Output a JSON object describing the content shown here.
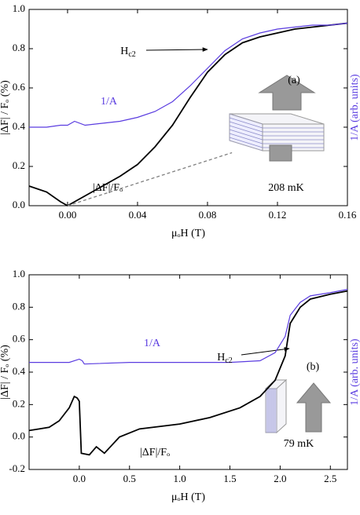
{
  "chart_data": [
    {
      "type": "line",
      "xlabel": "μₒH (T)",
      "ylabel": "|ΔF| / Fₒ (%)",
      "y2label": "1/A (arb. units)",
      "xlim": [
        -0.022,
        0.16
      ],
      "ylim": [
        0,
        1
      ],
      "xticks": [
        {
          "value": 0,
          "label": "0.00"
        },
        0.04,
        0.08,
        0.12,
        0.16
      ],
      "yticks": [
        {
          "value": 0,
          "label": "0.0"
        },
        0.2,
        0.4,
        0.6,
        0.8,
        {
          "value": 1,
          "label": "1.0"
        }
      ],
      "x": [
        -0.022,
        -0.012,
        -0.004,
        0,
        0.004,
        0.01,
        0.02,
        0.03,
        0.04,
        0.05,
        0.06,
        0.07,
        0.08,
        0.09,
        0.1,
        0.11,
        0.12,
        0.13,
        0.14,
        0.15,
        0.16
      ],
      "series": [
        {
          "name": "|ΔF|/Fₒ",
          "color": "#000000",
          "values": [
            0.1,
            0.07,
            0.02,
            0.0,
            0.02,
            0.05,
            0.1,
            0.15,
            0.21,
            0.3,
            0.41,
            0.55,
            0.68,
            0.77,
            0.83,
            0.86,
            0.88,
            0.9,
            0.91,
            0.92,
            0.93
          ]
        },
        {
          "name": "1/A",
          "color": "#5a3ce0",
          "values": [
            0.4,
            0.4,
            0.41,
            0.41,
            0.43,
            0.41,
            0.42,
            0.43,
            0.45,
            0.48,
            0.53,
            0.61,
            0.7,
            0.79,
            0.85,
            0.88,
            0.9,
            0.91,
            0.92,
            0.92,
            0.93
          ]
        },
        {
          "color": "#808080",
          "style": "dashed",
          "x": [
            0,
            0.094
          ],
          "values": [
            0,
            0.27
          ]
        }
      ],
      "annotations": [
        {
          "text": "H",
          "sub": "c2"
        },
        {
          "text": "(a)"
        },
        {
          "text": "208 mK"
        }
      ]
    },
    {
      "type": "line",
      "xlabel": "μₒH (T)",
      "ylabel": "|ΔF| / Fₒ (%)",
      "y2label": "1/A (arb. units)",
      "xlim": [
        -0.5,
        2.67
      ],
      "ylim": [
        -0.2,
        1
      ],
      "xticks": [
        {
          "value": 0,
          "label": "0.0"
        },
        0.5,
        {
          "value": 1,
          "label": "1.0"
        },
        1.5,
        {
          "value": 2,
          "label": "2.0"
        },
        2.5
      ],
      "yticks": [
        -0.2,
        {
          "value": 0,
          "label": "0.0"
        },
        0.2,
        0.4,
        0.6,
        0.8,
        {
          "value": 1,
          "label": "1.0"
        }
      ],
      "series": [
        {
          "name": "|ΔF|/Fₒ",
          "color": "#000000",
          "x": [
            -0.5,
            -0.4,
            -0.3,
            -0.2,
            -0.1,
            -0.05,
            -0.02,
            0.0,
            0.02,
            0.1,
            0.17,
            0.25,
            0.4,
            0.6,
            1.0,
            1.3,
            1.6,
            1.8,
            1.95,
            2.05,
            2.1,
            2.2,
            2.3,
            2.5,
            2.67
          ],
          "values": [
            0.04,
            0.05,
            0.06,
            0.1,
            0.18,
            0.25,
            0.24,
            0.22,
            -0.1,
            -0.11,
            -0.06,
            -0.1,
            0.0,
            0.05,
            0.08,
            0.12,
            0.18,
            0.25,
            0.35,
            0.5,
            0.7,
            0.8,
            0.85,
            0.88,
            0.9
          ]
        },
        {
          "name": "1/A",
          "color": "#5a3ce0",
          "x": [
            -0.5,
            -0.1,
            0.0,
            0.03,
            0.05,
            0.5,
            1.0,
            1.5,
            1.8,
            1.95,
            2.05,
            2.1,
            2.2,
            2.3,
            2.5,
            2.67
          ],
          "values": [
            0.46,
            0.46,
            0.48,
            0.47,
            0.45,
            0.46,
            0.46,
            0.46,
            0.47,
            0.52,
            0.62,
            0.75,
            0.83,
            0.87,
            0.89,
            0.91
          ]
        }
      ],
      "annotations": [
        {
          "text": "H",
          "sub": "c2"
        },
        {
          "text": "(b)"
        },
        {
          "text": "79 mK"
        }
      ]
    }
  ]
}
